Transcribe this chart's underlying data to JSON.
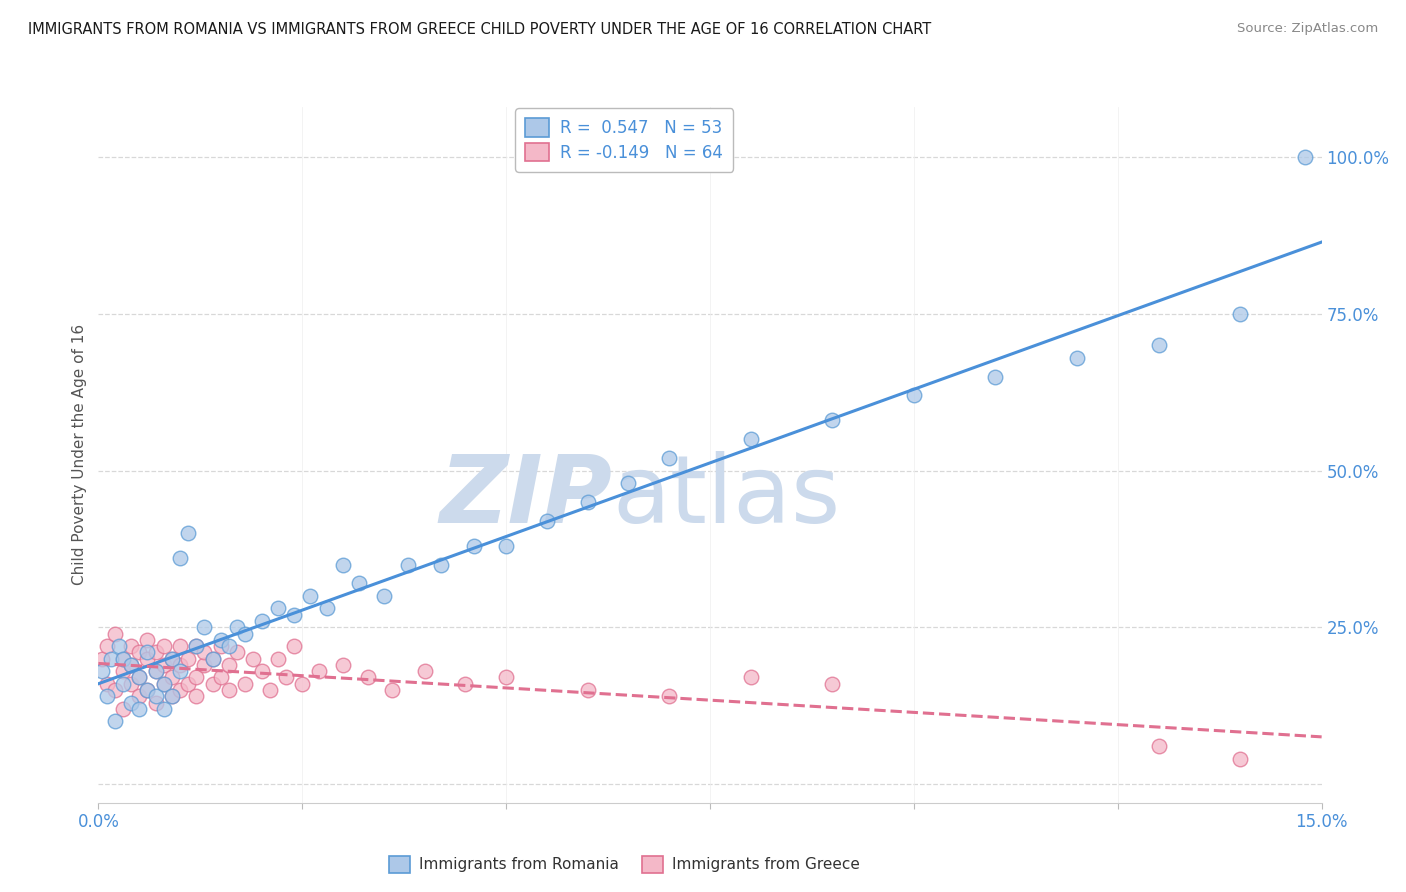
{
  "title": "IMMIGRANTS FROM ROMANIA VS IMMIGRANTS FROM GREECE CHILD POVERTY UNDER THE AGE OF 16 CORRELATION CHART",
  "source": "Source: ZipAtlas.com",
  "ylabel": "Child Poverty Under the Age of 16",
  "xlim": [
    0.0,
    0.15
  ],
  "ylim": [
    -0.03,
    1.08
  ],
  "xticks": [
    0.0,
    0.025,
    0.05,
    0.075,
    0.1,
    0.125,
    0.15
  ],
  "xtick_labels": [
    "0.0%",
    "",
    "",
    "",
    "",
    "",
    "15.0%"
  ],
  "ytick_vals": [
    0.0,
    0.25,
    0.5,
    0.75,
    1.0
  ],
  "ytick_labels": [
    "0%",
    "25.0%",
    "50.0%",
    "75.0%",
    "100.0%"
  ],
  "romania_fill": "#adc8e8",
  "romania_edge": "#5b9bd5",
  "greece_fill": "#f4b8c8",
  "greece_edge": "#e07090",
  "romania_line_color": "#4a90d9",
  "greece_line_color": "#e07090",
  "romania_R": 0.547,
  "romania_N": 53,
  "greece_R": -0.149,
  "greece_N": 64,
  "watermark_zip": "ZIP",
  "watermark_atlas": "atlas",
  "watermark_color": "#ccdaec",
  "background_color": "#ffffff",
  "grid_color": "#d8d8d8",
  "title_color": "#1a1a1a",
  "source_color": "#888888",
  "axis_label_color": "#555555",
  "tick_color": "#4a90d9",
  "romania_scatter_x": [
    0.0005,
    0.001,
    0.0015,
    0.002,
    0.0025,
    0.003,
    0.003,
    0.004,
    0.004,
    0.005,
    0.005,
    0.006,
    0.006,
    0.007,
    0.007,
    0.008,
    0.008,
    0.009,
    0.009,
    0.01,
    0.01,
    0.011,
    0.012,
    0.013,
    0.014,
    0.015,
    0.016,
    0.017,
    0.018,
    0.02,
    0.022,
    0.024,
    0.026,
    0.028,
    0.03,
    0.032,
    0.035,
    0.038,
    0.042,
    0.046,
    0.05,
    0.055,
    0.06,
    0.065,
    0.07,
    0.08,
    0.09,
    0.1,
    0.11,
    0.12,
    0.13,
    0.14,
    0.148
  ],
  "romania_scatter_y": [
    0.18,
    0.14,
    0.2,
    0.1,
    0.22,
    0.16,
    0.2,
    0.13,
    0.19,
    0.12,
    0.17,
    0.15,
    0.21,
    0.14,
    0.18,
    0.12,
    0.16,
    0.2,
    0.14,
    0.18,
    0.36,
    0.4,
    0.22,
    0.25,
    0.2,
    0.23,
    0.22,
    0.25,
    0.24,
    0.26,
    0.28,
    0.27,
    0.3,
    0.28,
    0.35,
    0.32,
    0.3,
    0.35,
    0.35,
    0.38,
    0.38,
    0.42,
    0.45,
    0.48,
    0.52,
    0.55,
    0.58,
    0.62,
    0.65,
    0.68,
    0.7,
    0.75,
    1.0
  ],
  "greece_scatter_x": [
    0.0005,
    0.001,
    0.001,
    0.002,
    0.002,
    0.003,
    0.003,
    0.003,
    0.004,
    0.004,
    0.004,
    0.005,
    0.005,
    0.005,
    0.006,
    0.006,
    0.006,
    0.007,
    0.007,
    0.007,
    0.008,
    0.008,
    0.008,
    0.009,
    0.009,
    0.009,
    0.01,
    0.01,
    0.01,
    0.011,
    0.011,
    0.012,
    0.012,
    0.012,
    0.013,
    0.013,
    0.014,
    0.014,
    0.015,
    0.015,
    0.016,
    0.016,
    0.017,
    0.018,
    0.019,
    0.02,
    0.021,
    0.022,
    0.023,
    0.024,
    0.025,
    0.027,
    0.03,
    0.033,
    0.036,
    0.04,
    0.045,
    0.05,
    0.06,
    0.07,
    0.08,
    0.09,
    0.13,
    0.14
  ],
  "greece_scatter_y": [
    0.2,
    0.22,
    0.16,
    0.24,
    0.15,
    0.2,
    0.18,
    0.12,
    0.22,
    0.16,
    0.19,
    0.14,
    0.21,
    0.17,
    0.2,
    0.15,
    0.23,
    0.18,
    0.13,
    0.21,
    0.16,
    0.19,
    0.22,
    0.14,
    0.2,
    0.17,
    0.15,
    0.22,
    0.19,
    0.16,
    0.2,
    0.17,
    0.22,
    0.14,
    0.19,
    0.21,
    0.16,
    0.2,
    0.17,
    0.22,
    0.15,
    0.19,
    0.21,
    0.16,
    0.2,
    0.18,
    0.15,
    0.2,
    0.17,
    0.22,
    0.16,
    0.18,
    0.19,
    0.17,
    0.15,
    0.18,
    0.16,
    0.17,
    0.15,
    0.14,
    0.17,
    0.16,
    0.06,
    0.04
  ]
}
